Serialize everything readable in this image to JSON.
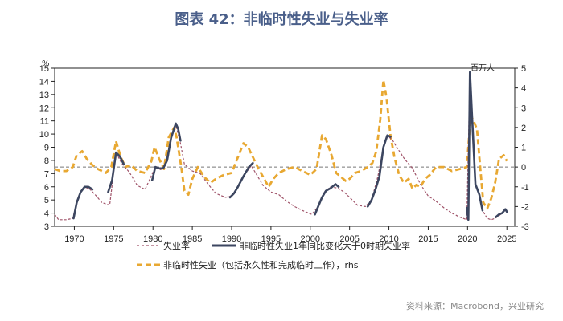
{
  "chart_data": {
    "type": "line",
    "title": "图表 42：非临时性失业与失业率",
    "left_unit": "%",
    "right_unit": "百万人",
    "source": "资料来源：Macrobond，兴业研究",
    "x_ticks": [
      1970,
      1975,
      1980,
      1985,
      1990,
      1995,
      2000,
      2005,
      2010,
      2015,
      2020,
      2025
    ],
    "xlim": [
      1967.5,
      2026.0
    ],
    "ylim_left": [
      3,
      15
    ],
    "y_ticks_left": [
      3,
      4,
      5,
      6,
      7,
      8,
      9,
      10,
      11,
      12,
      13,
      14,
      15
    ],
    "ylim_right": [
      -3,
      5
    ],
    "y_ticks_right": [
      -3,
      -2,
      -1,
      0,
      1,
      2,
      3,
      4,
      5
    ],
    "zero_line_rhs": 0,
    "colors": {
      "title": "#4a5f8a",
      "unemployment": "#a0546a",
      "highlight": "#3c4660",
      "permanent": "#e8a832",
      "zero": "#777777",
      "axis": "#222222"
    },
    "legend": [
      "失业率",
      "非临时性失业1年同比变化大于0时期失业率",
      "非临时性失业（包括永久性和完成临时工作），rhs"
    ],
    "series": [
      {
        "name": "失业率",
        "axis": "left",
        "style": "dashed",
        "x": [
          1967.5,
          1968,
          1969,
          1969.8,
          1970.3,
          1970.8,
          1971.3,
          1972,
          1972.8,
          1973.5,
          1974.5,
          1975.3,
          1976,
          1977,
          1978,
          1979,
          1980.3,
          1981,
          1981.5,
          1982.3,
          1982.9,
          1983.5,
          1984,
          1985,
          1986,
          1987,
          1988,
          1989.2,
          1990,
          1990.8,
          1991.5,
          1992.5,
          1993.2,
          1994,
          1995,
          1996,
          1997,
          1998,
          1999,
          2000.2,
          2001,
          2001.8,
          2002.6,
          2003.5,
          2004.3,
          2005,
          2006,
          2007,
          2007.8,
          2008.6,
          2009.3,
          2009.8,
          2010.5,
          2011,
          2012,
          2013,
          2014,
          2015,
          2016,
          2017,
          2018,
          2019,
          2019.9,
          2020.3,
          2020.6,
          2021,
          2021.5,
          2021.9,
          2022.5,
          2023,
          2023.5,
          2024,
          2024.6,
          2025.0
        ],
        "values": [
          3.9,
          3.5,
          3.5,
          3.6,
          4.8,
          5.6,
          6.0,
          5.8,
          5.3,
          4.8,
          4.6,
          8.6,
          7.8,
          7.1,
          6.1,
          5.8,
          7.5,
          7.3,
          7.5,
          9.7,
          10.7,
          9.3,
          7.7,
          7.2,
          7.0,
          6.2,
          5.5,
          5.2,
          5.3,
          6.0,
          6.8,
          7.6,
          6.9,
          6.1,
          5.6,
          5.4,
          4.9,
          4.5,
          4.2,
          3.9,
          4.5,
          5.6,
          6.0,
          5.9,
          5.6,
          5.2,
          4.6,
          4.5,
          5.0,
          6.8,
          9.0,
          9.9,
          9.5,
          9.0,
          8.1,
          7.4,
          6.2,
          5.3,
          4.9,
          4.4,
          4.0,
          3.7,
          3.5,
          14.7,
          11.0,
          6.2,
          5.4,
          4.2,
          3.6,
          3.5,
          3.6,
          3.8,
          4.1,
          4.2
        ]
      },
      {
        "name": "非临时性失业1年同比变化大于0时期失业率",
        "axis": "left",
        "style": "solid",
        "segments": [
          {
            "x": [
              1969.9,
              1970.3,
              1970.8,
              1971.3,
              1971.8,
              1972.3
            ],
            "values": [
              3.6,
              4.8,
              5.6,
              6.0,
              6.0,
              5.8
            ]
          },
          {
            "x": [
              1974.3,
              1974.8,
              1975.3,
              1975.8,
              1976.3
            ],
            "values": [
              5.6,
              6.5,
              8.6,
              8.3,
              7.7
            ]
          },
          {
            "x": [
              1979.9,
              1980.3,
              1980.8,
              1981.3,
              1981.8,
              1982.3,
              1982.9,
              1983.2,
              1983.5
            ],
            "values": [
              6.5,
              7.5,
              7.4,
              7.4,
              8.0,
              9.7,
              10.8,
              10.4,
              9.5
            ]
          },
          {
            "x": [
              1989.8,
              1990.3,
              1990.8,
              1991.5,
              1992.2,
              1992.7
            ],
            "values": [
              5.2,
              5.5,
              6.0,
              6.8,
              7.5,
              7.8
            ]
          },
          {
            "x": [
              2000.6,
              2001,
              2001.5,
              2002,
              2002.6,
              2003.2,
              2003.6
            ],
            "values": [
              3.9,
              4.5,
              5.2,
              5.7,
              5.9,
              6.2,
              6.0
            ]
          },
          {
            "x": [
              2007.3,
              2007.8,
              2008.3,
              2008.8,
              2009.3,
              2009.8,
              2010.2
            ],
            "values": [
              4.5,
              5.0,
              5.8,
              6.8,
              9.0,
              9.9,
              9.8
            ]
          },
          {
            "x": [
              2019.9,
              2020.1,
              2020.3,
              2020.6,
              2021,
              2021.5,
              2021.9
            ],
            "values": [
              4.4,
              3.5,
              14.7,
              11.0,
              6.2,
              5.4,
              4.2
            ]
          },
          {
            "x": [
              2023.6,
              2024,
              2024.4,
              2024.8,
              2025.0
            ],
            "values": [
              3.7,
              3.9,
              4.0,
              4.3,
              4.1
            ]
          }
        ]
      },
      {
        "name": "非临时性失业（包括永久性和完成临时工作），rhs",
        "axis": "right",
        "style": "dashed-thick",
        "x": [
          1967.5,
          1968.2,
          1969,
          1969.8,
          1970.3,
          1971,
          1971.6,
          1972.3,
          1973,
          1974,
          1974.7,
          1975.3,
          1975.9,
          1976.5,
          1977.2,
          1978,
          1979,
          1979.8,
          1980.2,
          1980.8,
          1981.4,
          1982,
          1982.7,
          1983,
          1983.6,
          1984,
          1984.5,
          1985,
          1985.7,
          1986.5,
          1987.3,
          1988,
          1989,
          1990,
          1990.8,
          1991.5,
          1992.1,
          1992.7,
          1993.3,
          1994,
          1994.7,
          1995.3,
          1996,
          1997,
          1998,
          1999,
          2000,
          2000.8,
          2001.5,
          2002,
          2002.7,
          2003.3,
          2003.9,
          2004.5,
          2005,
          2005.7,
          2006.5,
          2007.3,
          2007.9,
          2008.4,
          2008.9,
          2009.3,
          2009.7,
          2010.2,
          2010.7,
          2011.3,
          2011.9,
          2012.5,
          2013,
          2013.5,
          2014,
          2014.6,
          2015.2,
          2016,
          2017,
          2018,
          2019,
          2019.9,
          2020.4,
          2020.8,
          2021.2,
          2021.6,
          2022,
          2022.5,
          2023,
          2023.5,
          2024,
          2024.6,
          2025.0
        ],
        "values": [
          -0.1,
          -0.2,
          -0.2,
          0.0,
          0.6,
          0.8,
          0.4,
          0.1,
          -0.1,
          -0.3,
          0.0,
          1.3,
          0.5,
          0.0,
          0.1,
          -0.2,
          -0.3,
          0.3,
          1.0,
          0.4,
          -0.1,
          1.5,
          2.0,
          1.5,
          0.0,
          -1.2,
          -1.4,
          -0.6,
          0.0,
          -0.5,
          -0.8,
          -0.6,
          -0.4,
          -0.3,
          0.5,
          1.2,
          1.0,
          0.5,
          0.0,
          -0.5,
          -1.0,
          -0.6,
          -0.3,
          -0.1,
          0.0,
          -0.2,
          -0.4,
          -0.1,
          1.6,
          1.4,
          0.6,
          -0.3,
          -0.5,
          -0.7,
          -0.6,
          -0.3,
          -0.2,
          0.0,
          0.2,
          0.8,
          2.4,
          4.4,
          3.5,
          1.6,
          0.5,
          -0.4,
          -0.8,
          -0.6,
          -1.1,
          -0.9,
          -1.0,
          -0.6,
          -0.4,
          0.0,
          0.0,
          -0.2,
          -0.1,
          0.0,
          2.6,
          2.3,
          1.9,
          0.0,
          -1.8,
          -2.1,
          -1.6,
          -0.8,
          0.4,
          0.6,
          0.3
        ]
      }
    ]
  }
}
